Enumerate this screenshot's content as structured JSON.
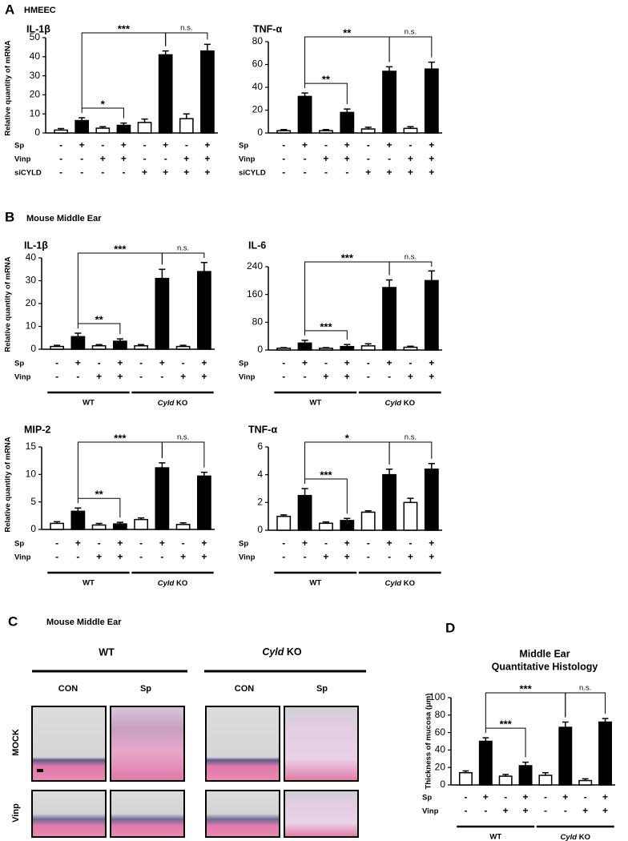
{
  "panels": [
    {
      "letter": "A",
      "title": "HMEEC"
    },
    {
      "letter": "B",
      "title": "Mouse Middle Ear"
    },
    {
      "letter": "C",
      "title": "Mouse Middle Ear"
    },
    {
      "letter": "D"
    }
  ],
  "y_axis_label": "Relative quantity of mRNA",
  "histology": {
    "groups": [
      "WT",
      "Cyld KO"
    ],
    "columns": [
      "CON",
      "Sp",
      "CON",
      "Sp"
    ],
    "rows": [
      "MOCK",
      "Vinp"
    ]
  },
  "chart_data": [
    {
      "type": "bar",
      "title": "IL-1β",
      "values": [
        1.5,
        6.5,
        2.5,
        4,
        5.5,
        41,
        7.5,
        43
      ],
      "errors": [
        0.8,
        1.5,
        0.8,
        1.2,
        1.8,
        2,
        2.5,
        3.5
      ],
      "colors": [
        "#ffffff",
        "#000000",
        "#ffffff",
        "#000000",
        "#ffffff",
        "#000000",
        "#ffffff",
        "#000000"
      ],
      "ylim": [
        0,
        50
      ],
      "yticks": [
        0,
        10,
        20,
        30,
        40,
        50
      ],
      "conditions": [
        {
          "name": "Sp",
          "signs": [
            "-",
            "+",
            "-",
            "+",
            "-",
            "+",
            "-",
            "+"
          ]
        },
        {
          "name": "Vinp",
          "signs": [
            "-",
            "-",
            "+",
            "+",
            "-",
            "-",
            "+",
            "+"
          ]
        },
        {
          "name": "siCYLD",
          "signs": [
            "-",
            "-",
            "-",
            "-",
            "+",
            "+",
            "+",
            "+"
          ]
        }
      ],
      "brackets": [
        {
          "from": 1,
          "to": 5,
          "label": "***"
        },
        {
          "from": 5,
          "to": 7,
          "label": "n.s."
        },
        {
          "from": 1,
          "to": 3,
          "label": "*"
        }
      ]
    },
    {
      "type": "bar",
      "title": "TNF-α",
      "values": [
        2,
        32,
        2,
        18,
        3.5,
        54,
        4,
        56
      ],
      "errors": [
        1,
        3,
        1,
        3,
        1.5,
        4,
        1.5,
        6
      ],
      "colors": [
        "#ffffff",
        "#000000",
        "#ffffff",
        "#000000",
        "#ffffff",
        "#000000",
        "#ffffff",
        "#000000"
      ],
      "ylim": [
        0,
        80
      ],
      "yticks": [
        0,
        20,
        40,
        60,
        80
      ],
      "conditions": [
        {
          "name": "Sp",
          "signs": [
            "-",
            "+",
            "-",
            "+",
            "-",
            "+",
            "-",
            "+"
          ]
        },
        {
          "name": "Vinp",
          "signs": [
            "-",
            "-",
            "+",
            "+",
            "-",
            "-",
            "+",
            "+"
          ]
        },
        {
          "name": "siCYLD",
          "signs": [
            "-",
            "-",
            "-",
            "-",
            "+",
            "+",
            "+",
            "+"
          ]
        }
      ],
      "brackets": [
        {
          "from": 1,
          "to": 5,
          "label": "**"
        },
        {
          "from": 5,
          "to": 7,
          "label": "n.s."
        },
        {
          "from": 1,
          "to": 3,
          "label": "**"
        }
      ]
    },
    {
      "type": "bar",
      "title": "IL-1β",
      "values": [
        1.2,
        5.5,
        1.5,
        3.5,
        1.5,
        31,
        1.2,
        34
      ],
      "errors": [
        0.5,
        1.5,
        0.5,
        1,
        0.5,
        4,
        0.5,
        4
      ],
      "colors": [
        "#ffffff",
        "#000000",
        "#ffffff",
        "#000000",
        "#ffffff",
        "#000000",
        "#ffffff",
        "#000000"
      ],
      "ylim": [
        0,
        40
      ],
      "yticks": [
        0,
        10,
        20,
        30,
        40
      ],
      "conditions": [
        {
          "name": "Sp",
          "signs": [
            "-",
            "+",
            "-",
            "+",
            "-",
            "+",
            "-",
            "+"
          ]
        },
        {
          "name": "Vinp",
          "signs": [
            "-",
            "-",
            "+",
            "+",
            "-",
            "-",
            "+",
            "+"
          ]
        }
      ],
      "groups": [
        {
          "label": "WT",
          "from": 0,
          "to": 3
        },
        {
          "label": "Cyld KO",
          "from": 4,
          "to": 7
        }
      ],
      "brackets": [
        {
          "from": 1,
          "to": 5,
          "label": "***"
        },
        {
          "from": 5,
          "to": 7,
          "label": "n.s."
        },
        {
          "from": 1,
          "to": 3,
          "label": "**"
        }
      ]
    },
    {
      "type": "bar",
      "title": "IL-6",
      "values": [
        5,
        20,
        5,
        10,
        12,
        180,
        8,
        200
      ],
      "errors": [
        2,
        8,
        2,
        6,
        6,
        22,
        3,
        28
      ],
      "colors": [
        "#ffffff",
        "#000000",
        "#ffffff",
        "#000000",
        "#ffffff",
        "#000000",
        "#ffffff",
        "#000000"
      ],
      "ylim": [
        0,
        240
      ],
      "yticks": [
        0,
        80,
        160,
        240
      ],
      "conditions": [
        {
          "name": "Sp",
          "signs": [
            "-",
            "+",
            "-",
            "+",
            "-",
            "+",
            "-",
            "+"
          ]
        },
        {
          "name": "Vinp",
          "signs": [
            "-",
            "-",
            "+",
            "+",
            "-",
            "-",
            "+",
            "+"
          ]
        }
      ],
      "groups": [
        {
          "label": "WT",
          "from": 0,
          "to": 3
        },
        {
          "label": "Cyld KO",
          "from": 4,
          "to": 7
        }
      ],
      "brackets": [
        {
          "from": 1,
          "to": 5,
          "label": "***"
        },
        {
          "from": 5,
          "to": 7,
          "label": "n.s."
        },
        {
          "from": 1,
          "to": 3,
          "label": "***"
        }
      ]
    },
    {
      "type": "bar",
      "title": "MIP-2",
      "values": [
        1.1,
        3.3,
        0.8,
        1,
        1.8,
        11.2,
        0.9,
        9.7
      ],
      "errors": [
        0.3,
        0.6,
        0.3,
        0.3,
        0.3,
        0.9,
        0.3,
        0.7
      ],
      "colors": [
        "#ffffff",
        "#000000",
        "#ffffff",
        "#000000",
        "#ffffff",
        "#000000",
        "#ffffff",
        "#000000"
      ],
      "ylim": [
        0,
        15
      ],
      "yticks": [
        0,
        5,
        10,
        15
      ],
      "conditions": [
        {
          "name": "Sp",
          "signs": [
            "-",
            "+",
            "-",
            "+",
            "-",
            "+",
            "-",
            "+"
          ]
        },
        {
          "name": "Vinp",
          "signs": [
            "-",
            "-",
            "+",
            "+",
            "-",
            "-",
            "+",
            "+"
          ]
        }
      ],
      "groups": [
        {
          "label": "WT",
          "from": 0,
          "to": 3
        },
        {
          "label": "Cyld KO",
          "from": 4,
          "to": 7
        }
      ],
      "brackets": [
        {
          "from": 1,
          "to": 5,
          "label": "***"
        },
        {
          "from": 5,
          "to": 7,
          "label": "n.s."
        },
        {
          "from": 1,
          "to": 3,
          "label": "**"
        }
      ]
    },
    {
      "type": "bar",
      "title": "TNF-α",
      "values": [
        1,
        2.5,
        0.5,
        0.7,
        1.3,
        4,
        2,
        4.4
      ],
      "errors": [
        0.1,
        0.5,
        0.1,
        0.15,
        0.1,
        0.4,
        0.3,
        0.4
      ],
      "colors": [
        "#ffffff",
        "#000000",
        "#ffffff",
        "#000000",
        "#ffffff",
        "#000000",
        "#ffffff",
        "#000000"
      ],
      "ylim": [
        0,
        6
      ],
      "yticks": [
        0,
        2,
        4,
        6
      ],
      "conditions": [
        {
          "name": "Sp",
          "signs": [
            "-",
            "+",
            "-",
            "+",
            "-",
            "+",
            "-",
            "+"
          ]
        },
        {
          "name": "Vinp",
          "signs": [
            "-",
            "-",
            "+",
            "+",
            "-",
            "-",
            "+",
            "+"
          ]
        }
      ],
      "groups": [
        {
          "label": "WT",
          "from": 0,
          "to": 3
        },
        {
          "label": "Cyld KO",
          "from": 4,
          "to": 7
        }
      ],
      "brackets": [
        {
          "from": 1,
          "to": 5,
          "label": "*"
        },
        {
          "from": 5,
          "to": 7,
          "label": "n.s."
        },
        {
          "from": 1,
          "to": 3,
          "label": "***"
        }
      ]
    },
    {
      "type": "bar",
      "title_lines": [
        "Middle Ear",
        "Quantitative Histology"
      ],
      "ylabel": "Thickness of mucosa (μm)",
      "values": [
        14,
        50,
        10,
        22,
        11,
        66,
        5,
        72
      ],
      "errors": [
        2,
        4,
        2,
        4,
        3,
        6,
        2,
        4
      ],
      "colors": [
        "#ffffff",
        "#000000",
        "#ffffff",
        "#000000",
        "#ffffff",
        "#000000",
        "#ffffff",
        "#000000"
      ],
      "ylim": [
        0,
        100
      ],
      "yticks": [
        0,
        20,
        40,
        60,
        80,
        100
      ],
      "conditions": [
        {
          "name": "Sp",
          "signs": [
            "-",
            "+",
            "-",
            "+",
            "-",
            "+",
            "-",
            "+"
          ]
        },
        {
          "name": "Vinp",
          "signs": [
            "-",
            "-",
            "+",
            "+",
            "-",
            "-",
            "+",
            "+"
          ]
        }
      ],
      "groups": [
        {
          "label": "WT",
          "from": 0,
          "to": 3
        },
        {
          "label": "Cyld KO",
          "from": 4,
          "to": 7
        }
      ],
      "brackets": [
        {
          "from": 1,
          "to": 5,
          "label": "***"
        },
        {
          "from": 5,
          "to": 7,
          "label": "n.s."
        },
        {
          "from": 1,
          "to": 3,
          "label": "***"
        }
      ]
    }
  ]
}
